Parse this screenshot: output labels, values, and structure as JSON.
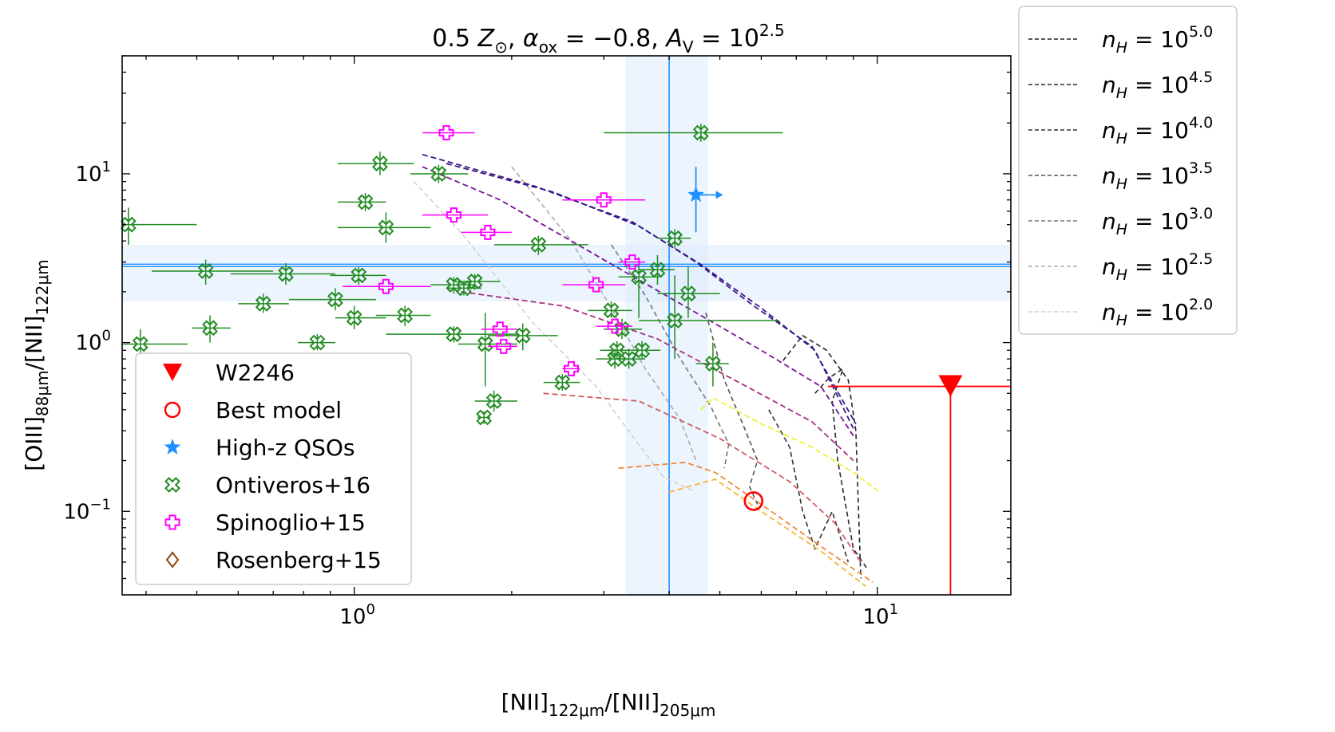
{
  "chart_data": {
    "type": "scatter",
    "title": "0.5 Z⊙, αox = −0.8, AV = 10^2.5",
    "title_parts": {
      "p1": "0.5 ",
      "zsun_main": "Z",
      "zsun_sub": "⊙",
      "p2": ", ",
      "alpha_main": "α",
      "alpha_sub": "ox",
      "p3": " = −0.8, ",
      "av_main": "A",
      "av_sub": "V",
      "p4": " = 10",
      "av_exp": "2.5"
    },
    "xlabel": "[NII]122μm/[NII]205μm",
    "xlabel_parts": {
      "m1": "[NII]",
      "s1": "122μm",
      "m2": "/[NII]",
      "s2": "205μm"
    },
    "ylabel": "[OIII]88μm/[NII]122μm",
    "ylabel_parts": {
      "m1": "[OIII]",
      "s1": "88μm",
      "m2": "/[NII]",
      "s2": "122μm"
    },
    "xscale": "log",
    "yscale": "log",
    "xlim": [
      0.36,
      18.0
    ],
    "ylim": [
      0.032,
      50.0
    ],
    "x_ticks": [
      {
        "value": 1,
        "base": "10",
        "exp": "0"
      },
      {
        "value": 10,
        "base": "10",
        "exp": "1"
      }
    ],
    "y_ticks": [
      {
        "value": 0.1,
        "base": "10",
        "exp": "−1"
      },
      {
        "value": 1,
        "base": "10",
        "exp": "0"
      },
      {
        "value": 10,
        "base": "10",
        "exp": "1"
      }
    ],
    "colors": {
      "w2246": "#ff0000",
      "qso": "#1e90ff",
      "ontiveros": "#228b22",
      "spinoglio": "#ff00ff",
      "rosenberg": "#8b4513",
      "band": "#dcebfb"
    },
    "w2246": {
      "x": 13.8,
      "y_upper": 0.55,
      "x_lower_limit": true,
      "y_upper_limit": true
    },
    "best_model": {
      "x": 5.8,
      "y": 0.115
    },
    "high_z_qso": {
      "x": 4.5,
      "y": 7.5,
      "y_err_low": 4.5,
      "y_err_high": 11.0,
      "x_lower_limit": true
    },
    "bands": {
      "vertical": {
        "center": 4.0,
        "low": 3.3,
        "high": 4.75
      },
      "horizontal": {
        "center": 2.85,
        "low": 1.75,
        "high": 3.8
      }
    },
    "ontiveros16": [
      {
        "x": 0.37,
        "y": 5.0,
        "xerr": [
          0.36,
          0.5
        ],
        "yerr": [
          3.8,
          6.3
        ]
      },
      {
        "x": 0.39,
        "y": 0.98,
        "xerr": [
          0.36,
          0.48
        ],
        "yerr": [
          0.85,
          1.2
        ]
      },
      {
        "x": 0.53,
        "y": 1.22,
        "xerr": [
          0.49,
          0.58
        ],
        "yerr": [
          1.0,
          1.45
        ]
      },
      {
        "x": 0.52,
        "y": 2.65,
        "xerr": [
          0.41,
          0.7
        ],
        "yerr": [
          2.2,
          3.1
        ]
      },
      {
        "x": 0.67,
        "y": 1.7,
        "xerr": [
          0.6,
          0.75
        ],
        "yerr": [
          1.5,
          1.95
        ]
      },
      {
        "x": 0.74,
        "y": 2.55,
        "xerr": [
          0.58,
          0.92
        ],
        "yerr": [
          2.2,
          2.95
        ]
      },
      {
        "x": 0.85,
        "y": 1.0,
        "xerr": [
          0.78,
          0.92
        ],
        "yerr": [
          0.9,
          1.12
        ]
      },
      {
        "x": 0.92,
        "y": 1.8,
        "xerr": [
          0.75,
          1.1
        ],
        "yerr": [
          1.55,
          2.1
        ]
      },
      {
        "x": 1.0,
        "y": 1.4,
        "xerr": [
          0.92,
          1.15
        ],
        "yerr": [
          1.2,
          1.65
        ]
      },
      {
        "x": 1.02,
        "y": 2.5,
        "xerr": [
          0.9,
          1.15
        ],
        "yerr": [
          2.2,
          2.8
        ]
      },
      {
        "x": 1.05,
        "y": 6.8,
        "xerr": [
          0.93,
          1.15
        ],
        "yerr": [
          6.0,
          7.7
        ]
      },
      {
        "x": 1.12,
        "y": 11.5,
        "xerr": [
          0.93,
          1.3
        ],
        "yerr": [
          9.8,
          13.5
        ]
      },
      {
        "x": 1.15,
        "y": 4.8,
        "xerr": [
          0.93,
          1.4
        ],
        "yerr": [
          3.9,
          5.9
        ]
      },
      {
        "x": 1.25,
        "y": 1.45,
        "xerr": [
          1.1,
          1.4
        ],
        "yerr": [
          1.25,
          1.65
        ]
      },
      {
        "x": 1.45,
        "y": 10.0,
        "xerr": [
          1.28,
          1.65
        ],
        "yerr": [
          8.8,
          11.3
        ]
      },
      {
        "x": 1.55,
        "y": 2.2,
        "xerr": [
          1.4,
          1.7
        ],
        "yerr": [
          1.95,
          2.45
        ]
      },
      {
        "x": 1.62,
        "y": 2.1,
        "xerr": [
          1.5,
          1.75
        ],
        "yerr": [
          1.9,
          2.3
        ]
      },
      {
        "x": 1.7,
        "y": 2.3,
        "xerr": [
          1.55,
          1.9
        ],
        "yerr": [
          2.05,
          2.55
        ]
      },
      {
        "x": 1.55,
        "y": 1.12,
        "xerr": [
          1.15,
          2.05
        ],
        "yerr": [
          1.0,
          1.25
        ]
      },
      {
        "x": 1.78,
        "y": 0.98,
        "xerr": [
          1.58,
          2.05
        ],
        "yerr": [
          0.55,
          1.5
        ]
      },
      {
        "x": 1.85,
        "y": 0.45,
        "xerr": [
          1.7,
          2.05
        ],
        "yerr": [
          0.39,
          0.52
        ]
      },
      {
        "x": 1.77,
        "y": 0.36,
        "xerr": [
          1.72,
          1.82
        ],
        "yerr": [
          0.33,
          0.39
        ]
      },
      {
        "x": 2.1,
        "y": 1.1,
        "xerr": [
          1.8,
          2.45
        ],
        "yerr": [
          0.9,
          1.3
        ]
      },
      {
        "x": 2.25,
        "y": 3.8,
        "xerr": [
          1.85,
          2.8
        ],
        "yerr": [
          3.3,
          4.3
        ]
      },
      {
        "x": 2.5,
        "y": 0.58,
        "xerr": [
          2.3,
          2.7
        ],
        "yerr": [
          0.52,
          0.65
        ]
      },
      {
        "x": 3.1,
        "y": 1.55,
        "xerr": [
          2.8,
          3.4
        ],
        "yerr": [
          1.4,
          1.75
        ]
      },
      {
        "x": 3.15,
        "y": 0.8,
        "xerr": [
          2.9,
          3.35
        ],
        "yerr": [
          0.7,
          0.92
        ]
      },
      {
        "x": 3.18,
        "y": 0.9,
        "xerr": [
          2.95,
          3.4
        ],
        "yerr": [
          0.8,
          1.02
        ]
      },
      {
        "x": 3.25,
        "y": 1.2,
        "xerr": [
          3.0,
          3.55
        ],
        "yerr": [
          1.05,
          1.38
        ]
      },
      {
        "x": 3.35,
        "y": 0.8,
        "xerr": [
          3.1,
          3.6
        ],
        "yerr": [
          0.7,
          0.92
        ]
      },
      {
        "x": 3.5,
        "y": 2.45,
        "xerr": [
          3.2,
          3.85
        ],
        "yerr": [
          1.4,
          3.2
        ]
      },
      {
        "x": 3.55,
        "y": 0.9,
        "xerr": [
          3.3,
          3.85
        ],
        "yerr": [
          0.8,
          1.02
        ]
      },
      {
        "x": 3.8,
        "y": 2.7,
        "xerr": [
          3.5,
          4.1
        ],
        "yerr": [
          2.2,
          3.3
        ]
      },
      {
        "x": 4.1,
        "y": 4.15,
        "xerr": [
          3.8,
          4.4
        ],
        "yerr": [
          3.6,
          4.7
        ]
      },
      {
        "x": 4.1,
        "y": 1.35,
        "xerr": [
          3.5,
          6.5
        ],
        "yerr": [
          0.8,
          2.5
        ]
      },
      {
        "x": 4.35,
        "y": 1.95,
        "xerr": [
          3.8,
          5.0
        ],
        "yerr": [
          1.4,
          2.8
        ]
      },
      {
        "x": 4.6,
        "y": 17.5,
        "xerr": [
          3.0,
          6.6
        ],
        "yerr": [
          15.5,
          19.8
        ]
      },
      {
        "x": 4.85,
        "y": 0.75,
        "xerr": [
          4.5,
          5.2
        ],
        "yerr": [
          0.55,
          1.0
        ]
      }
    ],
    "spinoglio15": [
      {
        "x": 1.5,
        "y": 17.5,
        "xerr": [
          1.35,
          1.7
        ]
      },
      {
        "x": 1.55,
        "y": 5.7,
        "xerr": [
          1.35,
          1.8
        ]
      },
      {
        "x": 1.8,
        "y": 4.5,
        "xerr": [
          1.6,
          2.0
        ]
      },
      {
        "x": 1.15,
        "y": 2.15,
        "xerr": [
          0.95,
          1.4
        ]
      },
      {
        "x": 1.9,
        "y": 1.2,
        "xerr": [
          1.75,
          2.05
        ]
      },
      {
        "x": 1.93,
        "y": 0.95,
        "xerr": [
          1.8,
          2.05
        ]
      },
      {
        "x": 2.6,
        "y": 0.7,
        "xerr": [
          2.5,
          2.7
        ]
      },
      {
        "x": 2.9,
        "y": 2.2,
        "xerr": [
          2.5,
          3.3
        ]
      },
      {
        "x": 3.0,
        "y": 7.0,
        "xerr": [
          2.5,
          3.6
        ]
      },
      {
        "x": 3.15,
        "y": 1.25,
        "xerr": [
          2.9,
          3.4
        ]
      },
      {
        "x": 3.4,
        "y": 3.0,
        "xerr": [
          3.2,
          3.6
        ]
      }
    ],
    "rosenberg15": [],
    "model_tracks": [
      {
        "name": "track-1",
        "color": "#3d1a8a",
        "x": [
          1.35,
          2.2,
          3.4,
          4.5,
          5.8,
          7.5,
          9.1
        ],
        "y": [
          13.0,
          8.5,
          5.2,
          3.0,
          1.65,
          0.95,
          0.33
        ]
      },
      {
        "name": "track-2",
        "color": "#3a1486",
        "x": [
          1.5,
          2.4,
          3.5,
          4.6,
          6.0,
          7.6,
          9.0
        ],
        "y": [
          11.5,
          7.8,
          4.9,
          2.9,
          1.6,
          0.9,
          0.31
        ]
      },
      {
        "name": "track-3",
        "color": "#7a1496",
        "x": [
          1.35,
          1.9,
          2.8,
          4.2,
          6.0,
          7.8,
          9.0
        ],
        "y": [
          11.0,
          7.0,
          3.5,
          1.7,
          0.9,
          0.55,
          0.28
        ]
      },
      {
        "name": "track-4",
        "color": "#a8307f",
        "x": [
          1.6,
          2.5,
          3.8,
          5.5,
          7.5,
          9.0
        ],
        "y": [
          2.0,
          1.65,
          1.05,
          0.57,
          0.34,
          0.2
        ]
      },
      {
        "name": "track-5",
        "color": "#d05c62",
        "x": [
          2.3,
          3.5,
          5.0,
          6.8,
          8.3,
          9.3
        ],
        "y": [
          0.5,
          0.45,
          0.27,
          0.15,
          0.085,
          0.05
        ]
      },
      {
        "name": "track-6",
        "color": "#ee8a3a",
        "x": [
          3.2,
          4.3,
          4.9,
          6.0,
          7.8,
          9.8
        ],
        "y": [
          0.18,
          0.195,
          0.17,
          0.11,
          0.062,
          0.038
        ]
      },
      {
        "name": "track-7",
        "color": "#f5b53a",
        "x": [
          4.0,
          4.9,
          6.0,
          7.8,
          9.5
        ],
        "y": [
          0.13,
          0.155,
          0.1,
          0.058,
          0.036
        ]
      },
      {
        "name": "track-8",
        "color": "#f2f030",
        "x": [
          4.6,
          4.85,
          6.0,
          7.5,
          9.0,
          10.1
        ],
        "y": [
          0.4,
          0.47,
          0.33,
          0.24,
          0.17,
          0.13
        ]
      }
    ],
    "density_tracks": [
      {
        "label": "n_H = 10^5.0",
        "exp": "5.0",
        "color": "#222222",
        "x": [
          6.6,
          7.2,
          8.0,
          8.8,
          9.1,
          9.3
        ],
        "y": [
          0.78,
          1.1,
          0.9,
          0.6,
          0.3,
          0.04
        ]
      },
      {
        "label": "n_H = 10^4.5",
        "exp": "4.5",
        "color": "#2a2a2a",
        "x": [
          7.6,
          8.1,
          8.6,
          8.2,
          8.4,
          9.0,
          9.6
        ],
        "y": [
          0.5,
          0.62,
          0.7,
          0.45,
          0.2,
          0.06,
          0.045
        ]
      },
      {
        "label": "n_H = 10^4.0",
        "exp": "4.0",
        "color": "#333333",
        "x": [
          6.2,
          6.8,
          7.2,
          7.6,
          8.2,
          8.8
        ],
        "y": [
          0.4,
          0.24,
          0.1,
          0.06,
          0.1,
          0.05
        ]
      },
      {
        "label": "n_H = 10^3.5",
        "exp": "3.5",
        "color": "#555555",
        "x": [
          4.7,
          5.1,
          5.6,
          5.9,
          5.7,
          5.9
        ],
        "y": [
          1.5,
          0.6,
          0.3,
          0.2,
          0.14,
          0.11
        ]
      },
      {
        "label": "n_H = 10^3.0",
        "exp": "3.0",
        "color": "#777777",
        "x": [
          3.1,
          3.6,
          4.2,
          4.8,
          5.2,
          5.1
        ],
        "y": [
          3.8,
          1.9,
          0.8,
          0.42,
          0.25,
          0.18
        ]
      },
      {
        "label": "n_H = 10^2.5",
        "exp": "2.5",
        "color": "#aaaaaa",
        "x": [
          2.0,
          2.6,
          3.1,
          3.6,
          4.2,
          4.5
        ],
        "y": [
          11.0,
          4.0,
          1.6,
          0.7,
          0.35,
          0.2
        ]
      },
      {
        "label": "n_H = 10^2.0",
        "exp": "2.0",
        "color": "#d0d0d0",
        "x": [
          1.3,
          1.6,
          2.2,
          2.9,
          3.4,
          3.9,
          4.5
        ],
        "y": [
          9.0,
          4.5,
          1.3,
          0.55,
          0.28,
          0.16,
          0.13
        ]
      }
    ],
    "legend": [
      {
        "label": "W2246",
        "marker": "triangle-down",
        "color": "#ff0000"
      },
      {
        "label": "Best model",
        "marker": "open-circle",
        "color": "#ff0000"
      },
      {
        "label": "High-z QSOs",
        "marker": "star",
        "color": "#1e90ff"
      },
      {
        "label": "Ontiveros+16",
        "marker": "open-cross-x",
        "color": "#228b22"
      },
      {
        "label": "Spinoglio+15",
        "marker": "open-plus",
        "color": "#ff00ff"
      },
      {
        "label": "Rosenberg+15",
        "marker": "open-diamond",
        "color": "#8b4513"
      }
    ],
    "legend_position": "lower-left",
    "density_legend_position": "outside-right"
  }
}
